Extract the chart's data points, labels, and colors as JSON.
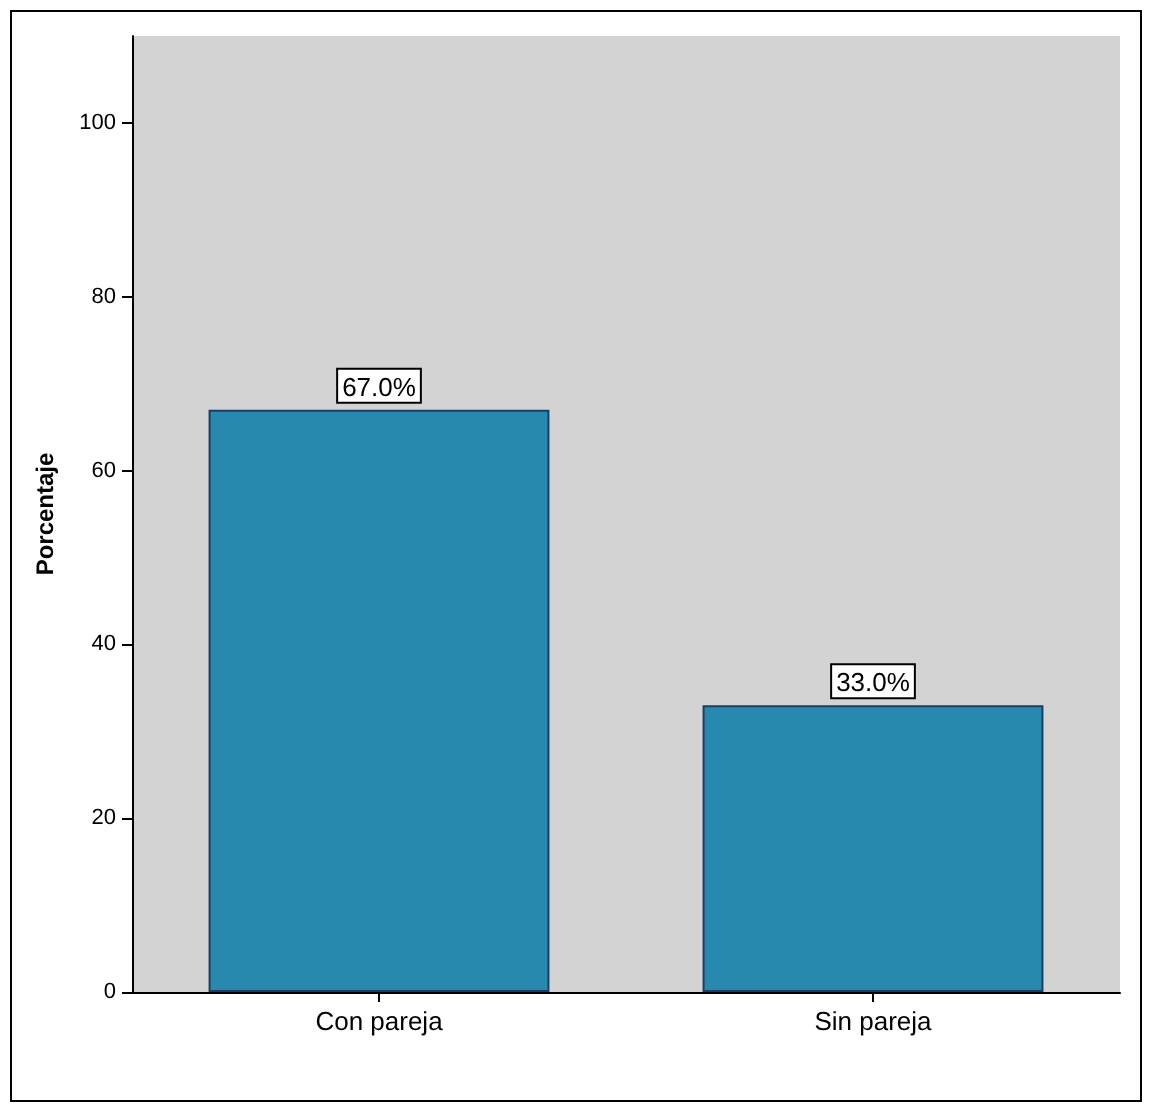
{
  "chart_data": {
    "type": "bar",
    "ylabel": "Porcentaje",
    "categories": [
      "Con pareja",
      "Sin pareja"
    ],
    "values": [
      67.0,
      33.0
    ],
    "color": "#2689ad",
    "value_labels": [
      "67.0%",
      "33.0%"
    ],
    "ylim": [
      0,
      110
    ],
    "yticks": [
      0,
      20,
      40,
      60,
      80,
      100
    ],
    "grid": false
  }
}
